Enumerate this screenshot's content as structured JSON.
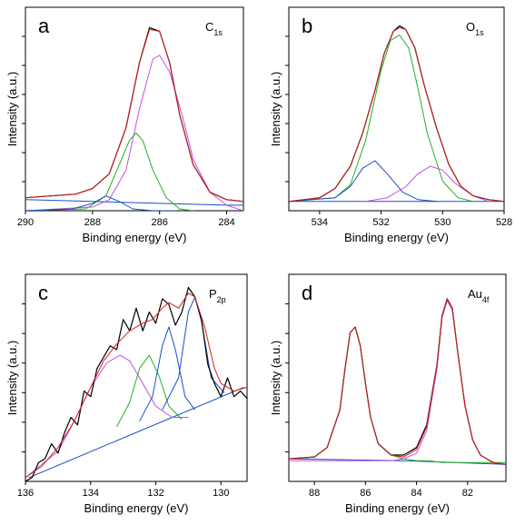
{
  "figure": {
    "panels": [
      {
        "letter": "a",
        "element": "C",
        "sub": "1s"
      },
      {
        "letter": "b",
        "element": "O",
        "sub": "1s"
      },
      {
        "letter": "c",
        "element": "P",
        "sub": "2p"
      },
      {
        "letter": "d",
        "element": "Au",
        "sub": "4f"
      }
    ]
  },
  "chart_data": [
    {
      "type": "line",
      "panel": "a",
      "xlabel": "Binding energy (eV)",
      "ylabel": "Intensity (a.u.)",
      "xlim": [
        290,
        283.5
      ],
      "ylim": [
        0,
        1.1
      ],
      "x_reversed": true,
      "xticks": [
        290,
        288,
        286,
        284
      ],
      "y_tick_count": 6,
      "y_tick_labels_shown": false,
      "baseline": {
        "name": "baseline",
        "color": "#1a4fc4",
        "x": [
          290,
          288,
          286,
          284,
          283.5
        ],
        "y": [
          0.06,
          0.05,
          0.04,
          0.03,
          0.03
        ]
      },
      "series": [
        {
          "role": "measured",
          "color": "#000000",
          "x": [
            290,
            288.5,
            288,
            287.5,
            287,
            286.6,
            286.3,
            286.0,
            285.7,
            285.4,
            285.0,
            284.5,
            284.0,
            283.5
          ],
          "y": [
            0.07,
            0.09,
            0.12,
            0.2,
            0.45,
            0.8,
            0.99,
            0.97,
            0.8,
            0.52,
            0.25,
            0.1,
            0.06,
            0.05
          ]
        },
        {
          "role": "fit-sum",
          "color": "#d42020",
          "x": [
            290,
            288.5,
            288,
            287.5,
            287,
            286.6,
            286.3,
            286.0,
            285.7,
            285.4,
            285.0,
            284.5,
            284.0,
            283.5
          ],
          "y": [
            0.07,
            0.09,
            0.12,
            0.2,
            0.45,
            0.8,
            0.98,
            0.97,
            0.8,
            0.52,
            0.25,
            0.1,
            0.06,
            0.05
          ]
        },
        {
          "role": "component",
          "color": "#c050e0",
          "x": [
            290,
            288,
            287.5,
            287,
            286.6,
            286.2,
            286.0,
            285.7,
            285.3,
            285.0,
            284.5,
            284.0,
            283.5
          ],
          "y": [
            0.0,
            0.02,
            0.06,
            0.22,
            0.55,
            0.82,
            0.84,
            0.75,
            0.5,
            0.28,
            0.1,
            0.03,
            0.0
          ]
        },
        {
          "role": "component",
          "color": "#22b022",
          "x": [
            290,
            288.2,
            287.6,
            287.2,
            286.9,
            286.7,
            286.5,
            286.2,
            285.8,
            285.4,
            285.0
          ],
          "y": [
            0.0,
            0.01,
            0.08,
            0.25,
            0.38,
            0.42,
            0.38,
            0.22,
            0.07,
            0.01,
            0.0
          ]
        },
        {
          "role": "component",
          "color": "#1a4fc4",
          "x": [
            290,
            288.6,
            288.0,
            287.6,
            287.2,
            286.8,
            286.2,
            285.5
          ],
          "y": [
            0.0,
            0.01,
            0.04,
            0.08,
            0.05,
            0.01,
            0.0,
            0.0
          ]
        }
      ]
    },
    {
      "type": "line",
      "panel": "b",
      "xlabel": "Binding energy (eV)",
      "ylabel": "Intensity (a.u.)",
      "xlim": [
        535,
        528
      ],
      "ylim": [
        0,
        1.1
      ],
      "x_reversed": true,
      "xticks": [
        534,
        532,
        530,
        528
      ],
      "y_tick_count": 6,
      "y_tick_labels_shown": false,
      "baseline": {
        "name": "baseline",
        "color": "#1a4fc4",
        "x": [
          535,
          532,
          528
        ],
        "y": [
          0.05,
          0.05,
          0.05
        ]
      },
      "series": [
        {
          "role": "measured",
          "color": "#000000",
          "x": [
            535,
            534,
            533.5,
            533,
            532.6,
            532.2,
            531.9,
            531.6,
            531.4,
            531.2,
            530.9,
            530.6,
            530.2,
            529.8,
            529.4,
            529,
            528.5,
            528
          ],
          "y": [
            0.05,
            0.07,
            0.12,
            0.24,
            0.42,
            0.65,
            0.85,
            0.97,
            1.0,
            0.98,
            0.88,
            0.68,
            0.45,
            0.25,
            0.13,
            0.08,
            0.06,
            0.05
          ]
        },
        {
          "role": "fit-sum",
          "color": "#d42020",
          "x": [
            535,
            534,
            533.5,
            533,
            532.6,
            532.2,
            531.9,
            531.6,
            531.4,
            531.2,
            530.9,
            530.6,
            530.2,
            529.8,
            529.4,
            529,
            528.5,
            528
          ],
          "y": [
            0.05,
            0.07,
            0.12,
            0.24,
            0.42,
            0.65,
            0.85,
            0.97,
            0.99,
            0.98,
            0.88,
            0.68,
            0.45,
            0.25,
            0.13,
            0.08,
            0.06,
            0.05
          ]
        },
        {
          "role": "component",
          "color": "#22b022",
          "x": [
            535,
            533.5,
            533,
            532.5,
            532.0,
            531.7,
            531.4,
            531.1,
            530.8,
            530.5,
            530.0,
            529.5,
            529
          ],
          "y": [
            0.05,
            0.07,
            0.14,
            0.38,
            0.76,
            0.92,
            0.95,
            0.88,
            0.66,
            0.42,
            0.16,
            0.07,
            0.05
          ]
        },
        {
          "role": "component",
          "color": "#1a4fc4",
          "x": [
            535,
            533.5,
            533,
            532.6,
            532.2,
            531.8,
            531.3,
            530.8,
            530.2
          ],
          "y": [
            0.05,
            0.07,
            0.13,
            0.23,
            0.27,
            0.2,
            0.1,
            0.06,
            0.05
          ]
        },
        {
          "role": "component",
          "color": "#c050e0",
          "x": [
            532.5,
            531.8,
            531.2,
            530.8,
            530.4,
            530.0,
            529.6,
            529.0,
            528.5
          ],
          "y": [
            0.05,
            0.07,
            0.13,
            0.2,
            0.24,
            0.22,
            0.15,
            0.08,
            0.05
          ]
        }
      ]
    },
    {
      "type": "line",
      "panel": "c",
      "xlabel": "Binding energy (eV)",
      "ylabel": "Intensity (a.u.)",
      "xlim": [
        136,
        129.2
      ],
      "ylim": [
        0,
        1.1
      ],
      "x_reversed": true,
      "xticks": [
        136,
        134,
        132,
        130
      ],
      "y_tick_count": 6,
      "y_tick_labels_shown": false,
      "baseline": {
        "name": "baseline",
        "color": "#1a4fc4",
        "x": [
          135.9,
          129.3
        ],
        "y": [
          0.02,
          0.5
        ]
      },
      "series": [
        {
          "role": "measured",
          "color": "#000000",
          "x": [
            136,
            135.8,
            135.6,
            135.4,
            135.2,
            135.0,
            134.8,
            134.6,
            134.4,
            134.2,
            134.0,
            133.8,
            133.6,
            133.4,
            133.2,
            133.0,
            132.8,
            132.6,
            132.4,
            132.2,
            132.0,
            131.8,
            131.6,
            131.4,
            131.2,
            131.0,
            130.8,
            130.6,
            130.4,
            130.2,
            130.0,
            129.8,
            129.6,
            129.4,
            129.2
          ],
          "y": [
            0.0,
            0.02,
            0.1,
            0.12,
            0.2,
            0.15,
            0.26,
            0.34,
            0.3,
            0.48,
            0.45,
            0.6,
            0.66,
            0.72,
            0.7,
            0.86,
            0.8,
            0.92,
            0.8,
            0.9,
            0.84,
            0.97,
            0.94,
            0.83,
            0.9,
            1.03,
            0.98,
            0.86,
            0.62,
            0.52,
            0.45,
            0.55,
            0.45,
            0.48,
            0.44
          ]
        },
        {
          "role": "fit-sum",
          "color": "#d42020",
          "x": [
            136,
            135.5,
            135,
            134.5,
            134,
            133.6,
            133.2,
            132.8,
            132.4,
            132.1,
            131.8,
            131.6,
            131.3,
            131.0,
            130.8,
            130.5,
            130.2,
            130.0,
            129.6,
            129.2
          ],
          "y": [
            0.02,
            0.08,
            0.18,
            0.32,
            0.5,
            0.64,
            0.73,
            0.8,
            0.84,
            0.86,
            0.92,
            0.95,
            0.92,
            1.0,
            0.98,
            0.82,
            0.6,
            0.52,
            0.48,
            0.5
          ]
        },
        {
          "role": "component",
          "color": "#c050e0",
          "x": [
            136,
            135,
            134.5,
            134,
            133.5,
            133.1,
            132.8,
            132.4,
            132.0,
            131.5,
            131.0
          ],
          "y": [
            0.02,
            0.16,
            0.32,
            0.5,
            0.63,
            0.67,
            0.64,
            0.52,
            0.4,
            0.34,
            0.34
          ]
        },
        {
          "role": "component",
          "color": "#22b022",
          "x": [
            133.2,
            132.8,
            132.5,
            132.2,
            131.9,
            131.6,
            131.2
          ],
          "y": [
            0.29,
            0.42,
            0.6,
            0.67,
            0.56,
            0.4,
            0.33
          ]
        },
        {
          "role": "component",
          "color": "#1a4fc4",
          "x": [
            132.5,
            132.1,
            131.8,
            131.6,
            131.4,
            131.1,
            130.8
          ],
          "y": [
            0.32,
            0.45,
            0.72,
            0.82,
            0.7,
            0.45,
            0.38
          ]
        },
        {
          "role": "component",
          "color": "#1a4fc4",
          "x": [
            131.8,
            131.3,
            131.0,
            130.8,
            130.6,
            130.3,
            129.9
          ],
          "y": [
            0.38,
            0.55,
            0.9,
            0.98,
            0.85,
            0.55,
            0.47
          ]
        }
      ]
    },
    {
      "type": "line",
      "panel": "d",
      "xlabel": "Binding energy (eV)",
      "ylabel": "Intensity (a.u.)",
      "xlim": [
        89,
        80.5
      ],
      "ylim": [
        0,
        1.1
      ],
      "x_reversed": true,
      "xticks": [
        88,
        86,
        84,
        82
      ],
      "y_tick_count": 6,
      "y_tick_labels_shown": false,
      "baseline": {
        "name": "baseline",
        "color": "#1a4fc4",
        "x": [
          89,
          84.5,
          80.5
        ],
        "y": [
          0.12,
          0.11,
          0.09
        ]
      },
      "series": [
        {
          "role": "measured",
          "color": "#000000",
          "x": [
            89,
            88,
            87.5,
            87,
            86.8,
            86.6,
            86.4,
            86.2,
            86.0,
            85.8,
            85.5,
            85,
            84.5,
            84,
            83.6,
            83.2,
            83.0,
            82.8,
            82.6,
            82.4,
            82.1,
            81.8,
            81.5,
            81,
            80.5
          ],
          "y": [
            0.12,
            0.13,
            0.18,
            0.38,
            0.6,
            0.79,
            0.82,
            0.72,
            0.52,
            0.34,
            0.2,
            0.14,
            0.14,
            0.18,
            0.3,
            0.62,
            0.88,
            0.97,
            0.92,
            0.7,
            0.4,
            0.22,
            0.14,
            0.1,
            0.09
          ]
        },
        {
          "role": "fit-sum",
          "color": "#d42020",
          "x": [
            89,
            88,
            87.5,
            87,
            86.8,
            86.6,
            86.4,
            86.2,
            86.0,
            85.8,
            85.5,
            85,
            84.5,
            84,
            83.6,
            83.2,
            83.0,
            82.8,
            82.6,
            82.4,
            82.1,
            81.8,
            81.5,
            81,
            80.5
          ],
          "y": [
            0.12,
            0.13,
            0.18,
            0.38,
            0.6,
            0.79,
            0.82,
            0.72,
            0.52,
            0.34,
            0.2,
            0.14,
            0.13,
            0.17,
            0.29,
            0.62,
            0.88,
            0.97,
            0.92,
            0.7,
            0.4,
            0.22,
            0.14,
            0.1,
            0.09
          ]
        },
        {
          "role": "component",
          "color": "#22b022",
          "x": [
            89,
            88,
            87.5,
            87,
            86.8,
            86.6,
            86.4,
            86.2,
            86.0,
            85.8,
            85.5,
            85,
            84.5,
            84,
            83.5,
            83,
            82,
            81,
            80.5
          ],
          "y": [
            0.12,
            0.13,
            0.18,
            0.38,
            0.6,
            0.79,
            0.82,
            0.72,
            0.52,
            0.34,
            0.2,
            0.14,
            0.12,
            0.11,
            0.11,
            0.1,
            0.1,
            0.1,
            0.1
          ]
        },
        {
          "role": "component",
          "color": "#c050e0",
          "x": [
            89,
            86,
            85,
            84.5,
            84,
            83.6,
            83.2,
            83.0,
            82.8,
            82.6,
            82.4,
            82.1,
            81.8,
            81.5,
            81,
            80.5
          ],
          "y": [
            0.11,
            0.11,
            0.11,
            0.12,
            0.15,
            0.27,
            0.6,
            0.87,
            0.96,
            0.91,
            0.7,
            0.4,
            0.22,
            0.14,
            0.1,
            0.09
          ]
        }
      ]
    }
  ]
}
